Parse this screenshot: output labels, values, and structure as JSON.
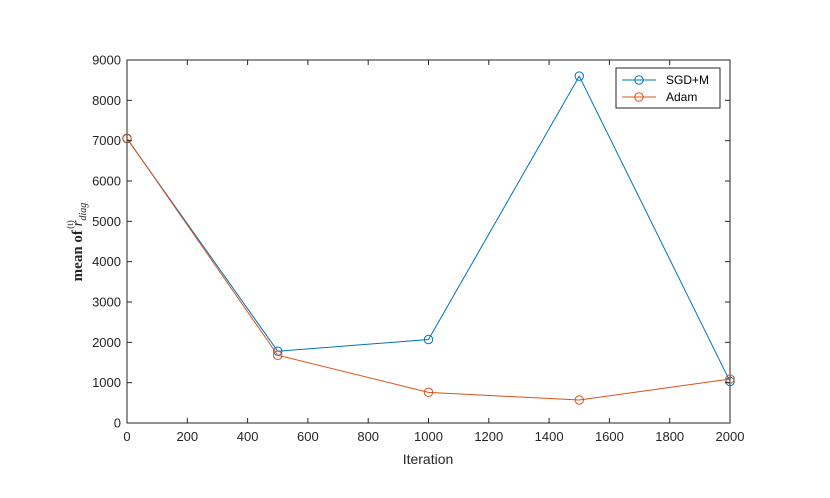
{
  "chart_data": {
    "type": "line",
    "title": "",
    "xlabel": "Iteration",
    "ylabel": {
      "prefix": "mean of ",
      "symbol": "r",
      "subscript": "diag",
      "superscript": "(t)"
    },
    "x": [
      0,
      500,
      1000,
      1500,
      2000
    ],
    "xlim": [
      0,
      2000
    ],
    "ylim": [
      0,
      9000
    ],
    "xticks": [
      "0",
      "200",
      "400",
      "600",
      "800",
      "1000",
      "1200",
      "1400",
      "1600",
      "1800",
      "2000"
    ],
    "yticks": [
      "0",
      "1000",
      "2000",
      "3000",
      "4000",
      "5000",
      "6000",
      "7000",
      "8000",
      "9000"
    ],
    "grid": false,
    "legend_position": "top-right",
    "marker": "circle",
    "series": [
      {
        "name": "SGD+M",
        "color": "#0072BD",
        "values": [
          7050,
          1780,
          2070,
          8600,
          1030
        ]
      },
      {
        "name": "Adam",
        "color": "#D95319",
        "values": [
          7060,
          1680,
          760,
          570,
          1090
        ]
      }
    ]
  }
}
